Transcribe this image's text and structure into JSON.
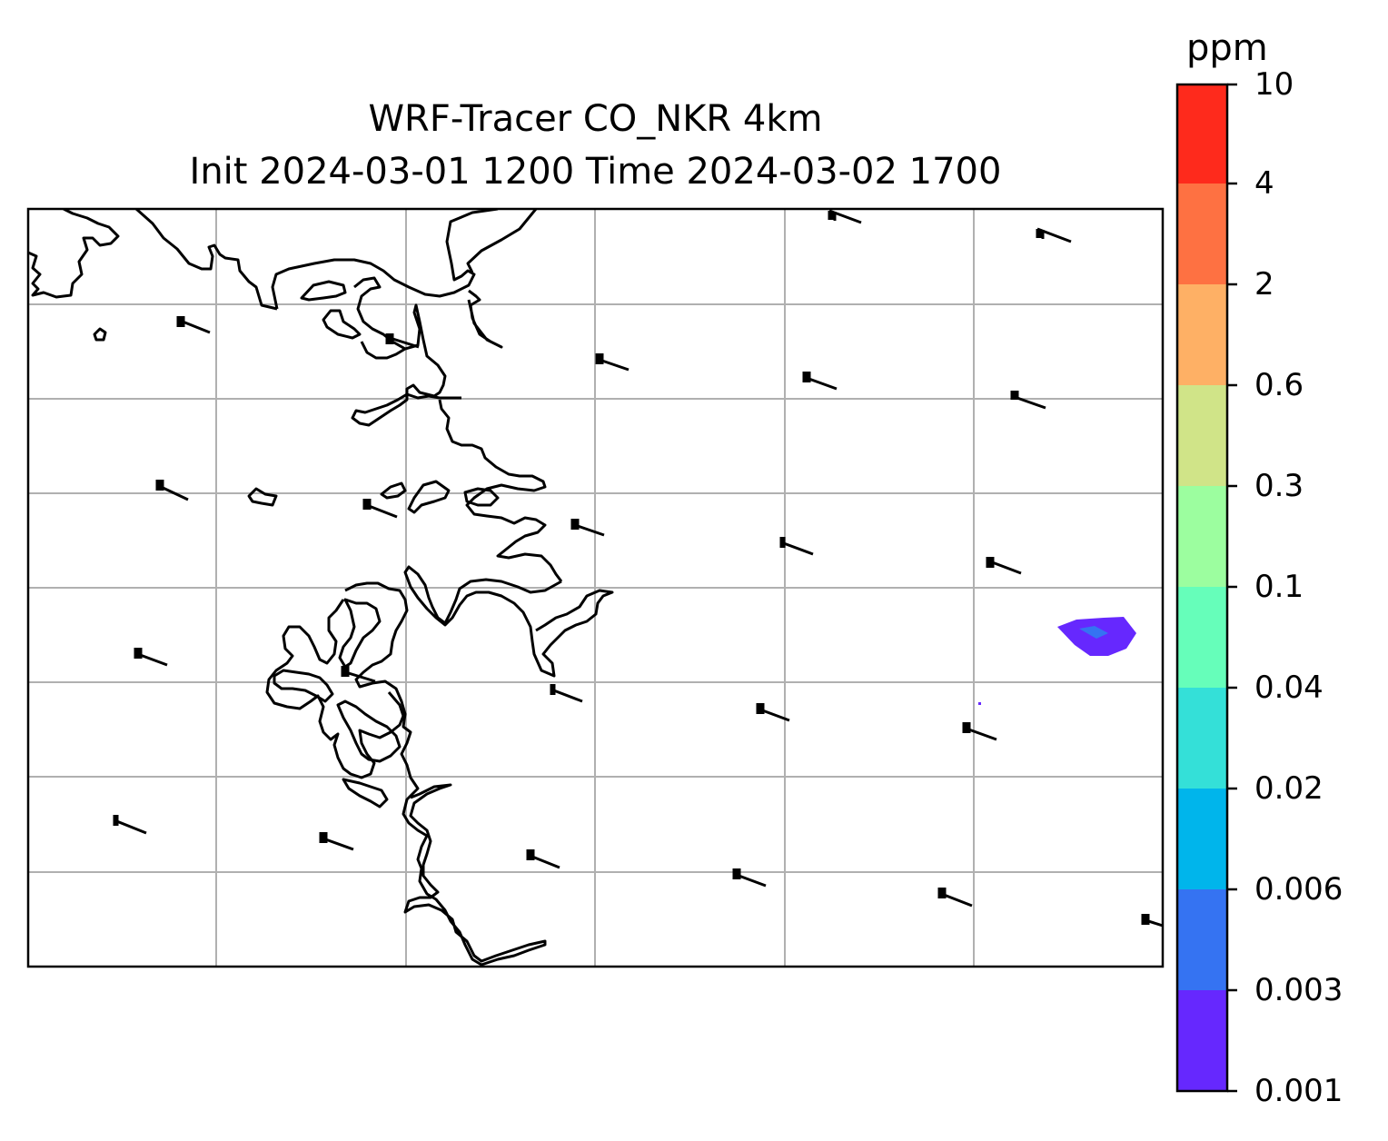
{
  "title": "WRF-Tracer CO_NKR 4km",
  "subtitle": "Init 2024-03-01 1200 Time 2024-03-02 1700",
  "colorbar": {
    "label": "ppm",
    "ticks": [
      "0.001",
      "0.003",
      "0.006",
      "0.02",
      "0.04",
      "0.1",
      "0.3",
      "0.6",
      "2",
      "4",
      "10"
    ],
    "colors": [
      "#6628fe",
      "#3573f2",
      "#00b5eb",
      "#34e0d8",
      "#66feba",
      "#9cfe9f",
      "#d0e488",
      "#feb065",
      "#fe7142",
      "#fe2a1c"
    ]
  },
  "map": {
    "grid": true,
    "gridlines": {
      "vertical_count": 5,
      "horizontal_count": 7
    },
    "features": [
      "coastline",
      "wind-barbs",
      "tracer-plume"
    ],
    "plume_levels": [
      "0.001",
      "0.003"
    ]
  }
}
